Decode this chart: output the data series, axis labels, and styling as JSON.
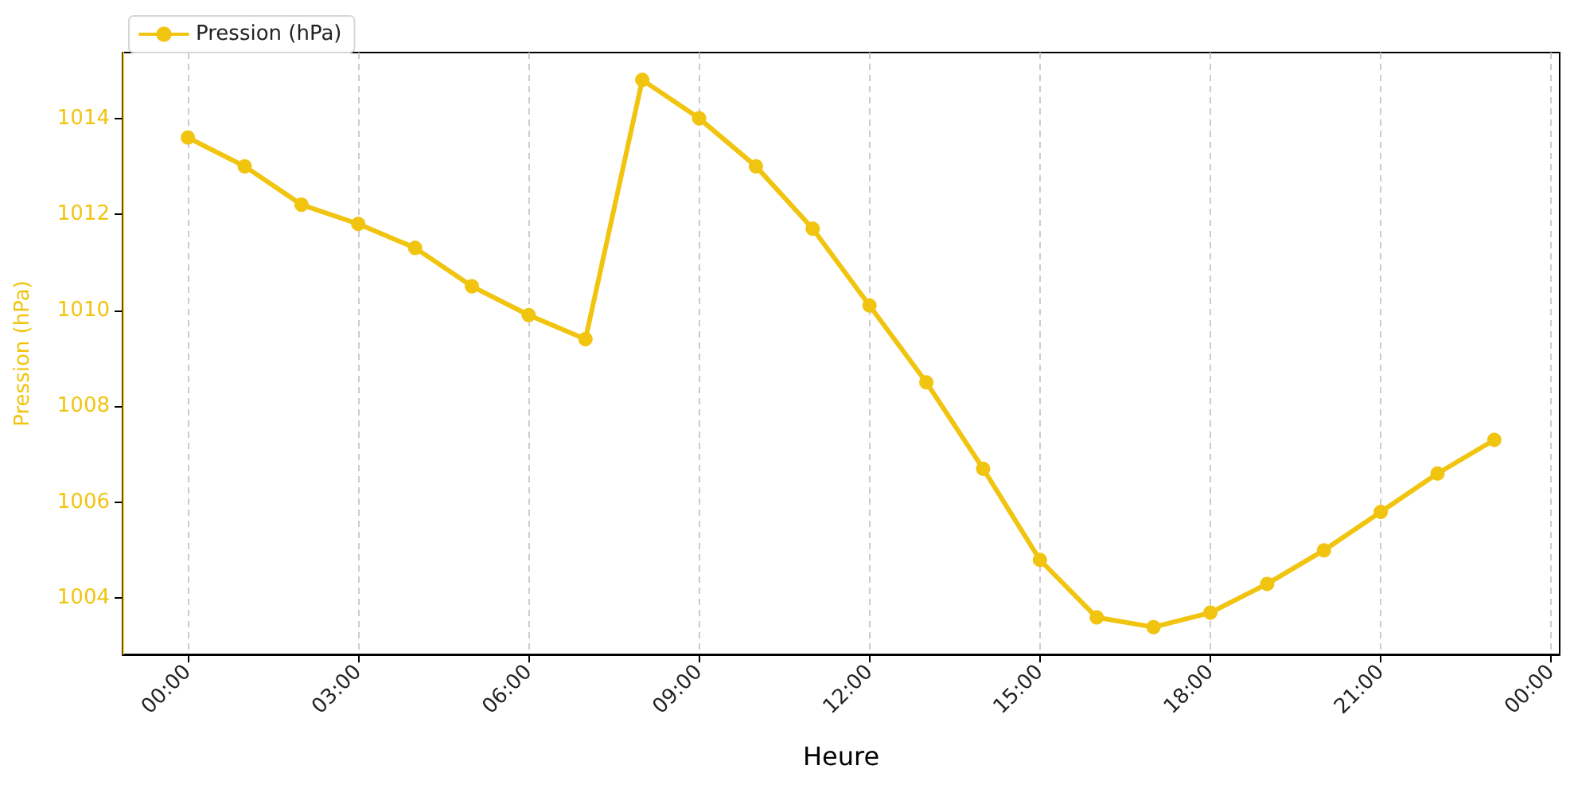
{
  "chart_data": {
    "type": "line",
    "xlabel": "Heure",
    "ylabel": "Pression (hPa)",
    "x": [
      0,
      1,
      2,
      3,
      4,
      5,
      6,
      7,
      8,
      9,
      10,
      11,
      12,
      13,
      14,
      15,
      16,
      17,
      18,
      19,
      20,
      21,
      22,
      23
    ],
    "series": [
      {
        "name": "Pression (hPa)",
        "color": "#f1c40f",
        "values": [
          1013.6,
          1013.0,
          1012.2,
          1011.8,
          1011.3,
          1010.5,
          1009.9,
          1009.4,
          1014.8,
          1014.0,
          1013.0,
          1011.7,
          1010.1,
          1008.5,
          1006.7,
          1004.8,
          1003.6,
          1003.4,
          1003.7,
          1004.3,
          1005.0,
          1005.8,
          1006.6,
          1007.3
        ]
      }
    ],
    "xlim": [
      -1.15,
      24.15
    ],
    "xticks": [
      {
        "value": 0,
        "label": "00:00"
      },
      {
        "value": 3,
        "label": "03:00"
      },
      {
        "value": 6,
        "label": "06:00"
      },
      {
        "value": 9,
        "label": "09:00"
      },
      {
        "value": 12,
        "label": "12:00"
      },
      {
        "value": 15,
        "label": "15:00"
      },
      {
        "value": 18,
        "label": "18:00"
      },
      {
        "value": 21,
        "label": "21:00"
      },
      {
        "value": 24,
        "label": "00:00"
      }
    ],
    "ylim": [
      1002.83,
      1015.37
    ],
    "yticks": [
      1004,
      1006,
      1008,
      1010,
      1012,
      1014
    ],
    "grid": "x",
    "legend": "top left",
    "marker": "circle",
    "line_style": "solid"
  }
}
